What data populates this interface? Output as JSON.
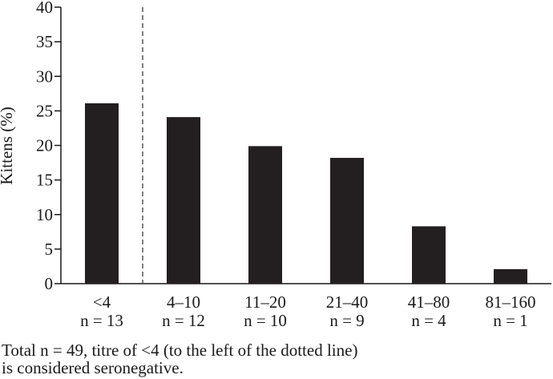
{
  "chart_data": {
    "type": "bar",
    "ylabel": "Kittens (%)",
    "xlabel": "",
    "title": "",
    "ylim": [
      0,
      40
    ],
    "yticks": [
      0,
      5,
      10,
      15,
      20,
      25,
      30,
      35,
      40
    ],
    "categories": [
      "<4",
      "4–10",
      "11–20",
      "21–40",
      "41–80",
      "81–160"
    ],
    "category_counts": [
      "n = 13",
      "n = 12",
      "n = 10",
      "n = 9",
      "n = 4",
      "n = 1"
    ],
    "values": [
      26.1,
      24.1,
      19.9,
      18.2,
      8.3,
      2.1
    ],
    "bar_color": "#231f20",
    "divider": {
      "between_categories": [
        0,
        1
      ],
      "style": "dashed"
    },
    "grid": false,
    "legend": "none"
  },
  "caption": {
    "line1": "Total n = 49, titre of <4 (to the left of the dotted line)",
    "line2": "is considered seronegative."
  }
}
